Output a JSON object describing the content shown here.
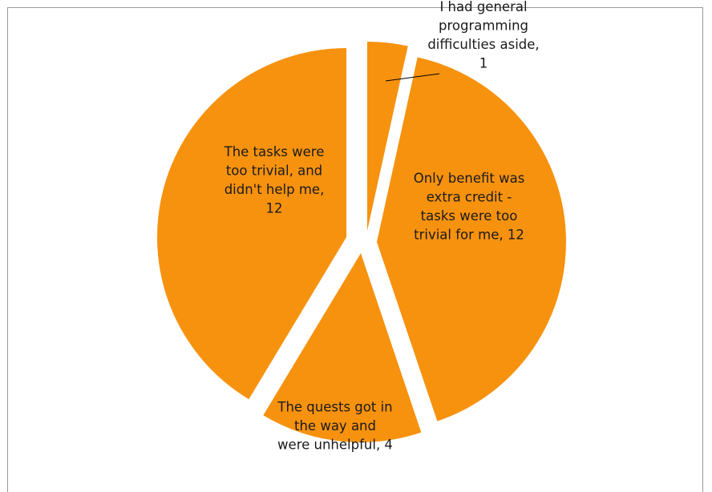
{
  "chart_data": {
    "type": "pie",
    "title": "",
    "categories": [
      "I had general programming difficulties aside",
      "Only benefit was extra credit - tasks were too trivial for me",
      "The quests got in the way and were unhelpful",
      "The tasks were too trivial, and didn't help me"
    ],
    "values": [
      1,
      12,
      4,
      12
    ],
    "labels": [
      [
        "I had general",
        "programming",
        "difficulties aside,",
        "1"
      ],
      [
        "Only benefit was",
        "extra credit -",
        "tasks were too",
        "trivial for me, 12"
      ],
      [
        "The quests got in",
        "the way and",
        "were unhelpful, 4"
      ],
      [
        "The tasks were",
        "too trivial, and",
        "didn't help me,",
        "12"
      ]
    ],
    "colors": [
      "#f7920f",
      "#f7920f",
      "#f7920f",
      "#f7920f"
    ],
    "exploded": true,
    "start_angle_deg": 0,
    "direction": "clockwise",
    "legend": "none"
  }
}
